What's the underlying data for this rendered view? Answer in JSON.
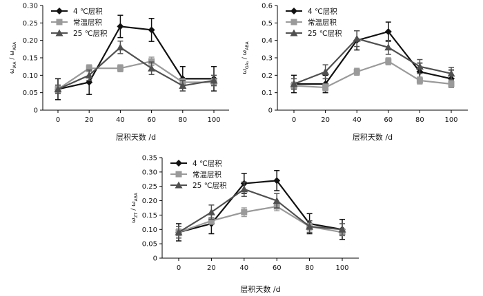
{
  "legend_labels": [
    "4 ℃层积",
    "常温层积",
    "25 ℃层积"
  ],
  "colors": {
    "series_4c": "#111111",
    "series_room": "#9a9a9a",
    "series_25c": "#505050",
    "axis": "#000000"
  },
  "markers": {
    "series_4c": "diamond",
    "series_room": "square",
    "series_25c": "triangle"
  },
  "chart_data": [
    {
      "type": "line",
      "xlabel": "层积天数 /d",
      "ylabel": {
        "a": "ω",
        "a_sub": "IAA",
        "b": " / ω",
        "b_sub": "ABA"
      },
      "x": [
        0,
        20,
        40,
        60,
        80,
        100
      ],
      "xlim": [
        0,
        100
      ],
      "ylim": [
        0,
        0.3
      ],
      "yticks": [
        "0",
        "0.05",
        "0.10",
        "0.15",
        "0.20",
        "0.25",
        "0.30"
      ],
      "series": [
        {
          "name": "4 ℃层积",
          "values": [
            0.06,
            0.08,
            0.24,
            0.23,
            0.09,
            0.09
          ],
          "errors": [
            0.03,
            0.035,
            0.032,
            0.033,
            0.035,
            0.035
          ]
        },
        {
          "name": "常温层积",
          "values": [
            0.06,
            0.12,
            0.12,
            0.14,
            0.08,
            0.08
          ],
          "errors": [
            0.01,
            0.01,
            0.01,
            0.012,
            0.01,
            0.01
          ]
        },
        {
          "name": "25 ℃层积",
          "values": [
            0.06,
            0.1,
            0.18,
            0.12,
            0.07,
            0.085
          ],
          "errors": [
            0.012,
            0.015,
            0.018,
            0.018,
            0.015,
            0.015
          ]
        }
      ]
    },
    {
      "type": "line",
      "xlabel": "层积天数 /d",
      "ylabel": {
        "a": "ω",
        "a_sub": "GA₃",
        "b": " / ω",
        "b_sub": "ABA"
      },
      "x": [
        0,
        20,
        40,
        60,
        80,
        100
      ],
      "xlim": [
        0,
        100
      ],
      "ylim": [
        0,
        0.6
      ],
      "yticks": [
        "0",
        "0.1",
        "0.2",
        "0.3",
        "0.4",
        "0.5",
        "0.6"
      ],
      "series": [
        {
          "name": "4 ℃层积",
          "values": [
            0.15,
            0.15,
            0.4,
            0.45,
            0.22,
            0.18
          ],
          "errors": [
            0.05,
            0.05,
            0.055,
            0.055,
            0.05,
            0.05
          ]
        },
        {
          "name": "常温层积",
          "values": [
            0.14,
            0.13,
            0.22,
            0.28,
            0.17,
            0.15
          ],
          "errors": [
            0.02,
            0.02,
            0.02,
            0.02,
            0.02,
            0.02
          ]
        },
        {
          "name": "25 ℃层积",
          "values": [
            0.15,
            0.22,
            0.41,
            0.36,
            0.25,
            0.21
          ],
          "errors": [
            0.03,
            0.04,
            0.045,
            0.04,
            0.04,
            0.035
          ]
        }
      ]
    },
    {
      "type": "line",
      "xlabel": "层积天数 /d",
      "ylabel": {
        "a": "ω",
        "a_sub": "ZT",
        "b": " / ω",
        "b_sub": "ABA"
      },
      "x": [
        0,
        20,
        40,
        60,
        80,
        100
      ],
      "xlim": [
        0,
        100
      ],
      "ylim": [
        0,
        0.35
      ],
      "yticks": [
        "0",
        "0.05",
        "0.10",
        "0.15",
        "0.20",
        "0.25",
        "0.30",
        "0.35"
      ],
      "series": [
        {
          "name": "4 ℃层积",
          "values": [
            0.09,
            0.12,
            0.26,
            0.27,
            0.12,
            0.1
          ],
          "errors": [
            0.03,
            0.035,
            0.035,
            0.035,
            0.035,
            0.035
          ]
        },
        {
          "name": "常温层积",
          "values": [
            0.09,
            0.13,
            0.16,
            0.18,
            0.11,
            0.09
          ],
          "errors": [
            0.012,
            0.012,
            0.015,
            0.015,
            0.012,
            0.012
          ]
        },
        {
          "name": "25 ℃层积",
          "values": [
            0.09,
            0.16,
            0.24,
            0.2,
            0.11,
            0.1
          ],
          "errors": [
            0.02,
            0.025,
            0.025,
            0.025,
            0.02,
            0.02
          ]
        }
      ]
    }
  ]
}
